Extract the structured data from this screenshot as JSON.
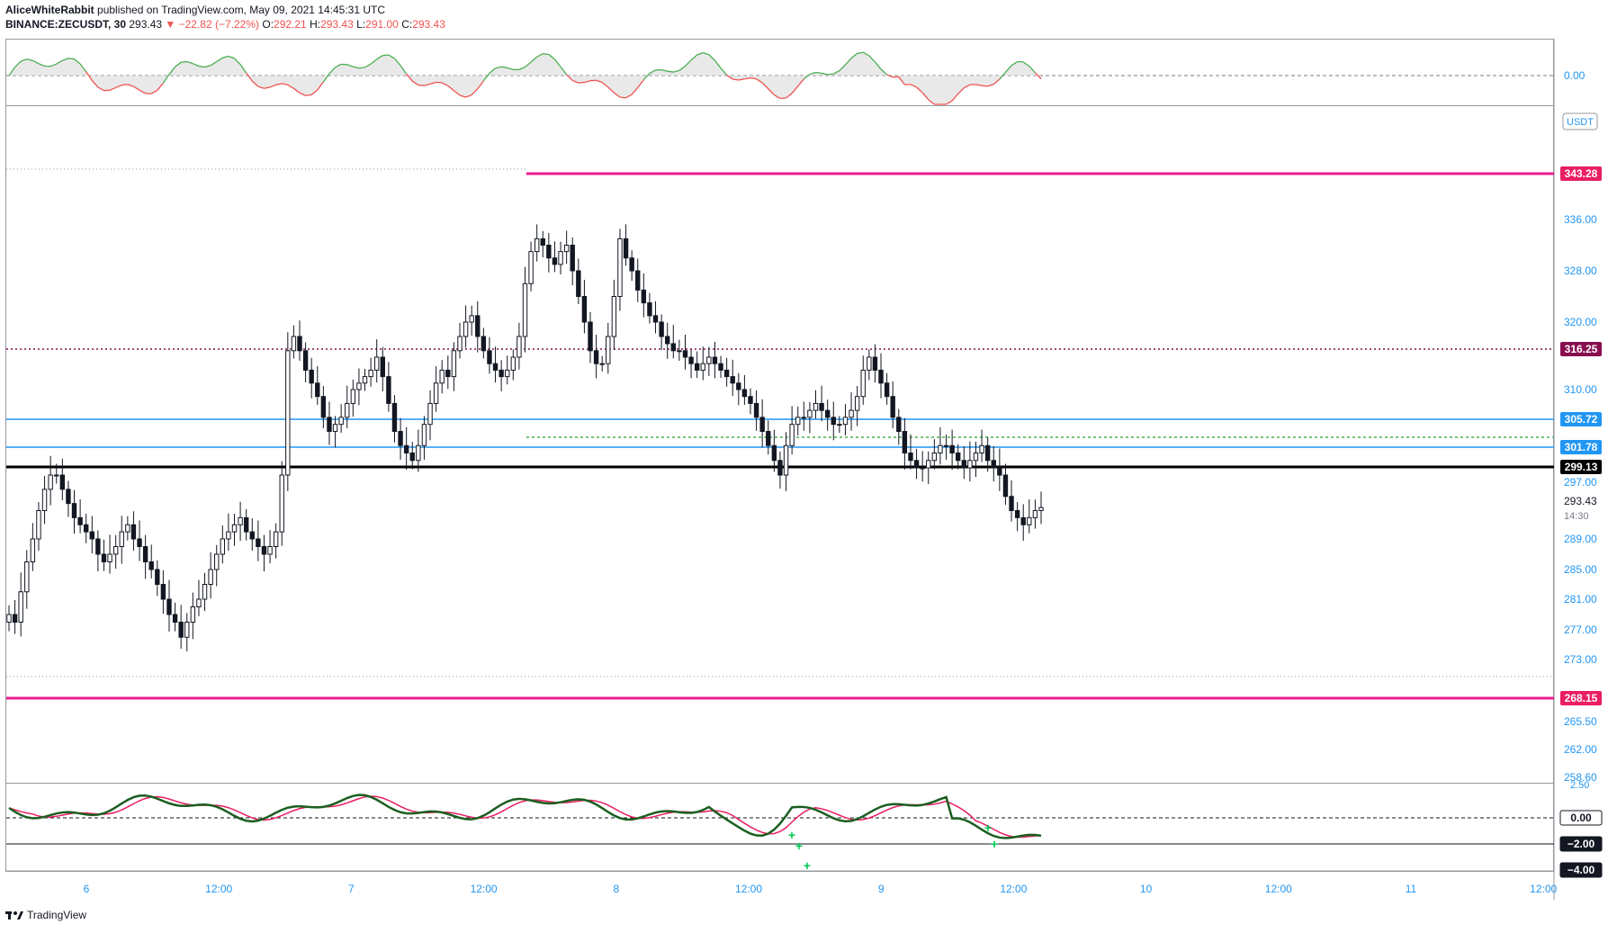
{
  "header": {
    "author": "AliceWhiteRabbit",
    "published": "published on TradingView.com, May 09, 2021 14:45:31 UTC",
    "symbol": "BINANCE:ZECUSDT, 30",
    "last": "293.43",
    "change": "▼ −22.82 (−7.22%)",
    "o_label": "O:",
    "o_val": "292.21",
    "h_label": "H:",
    "h_val": "293.43",
    "l_label": "L:",
    "l_val": "291.00",
    "c_label": "C:",
    "c_val": "293.43"
  },
  "footer": {
    "brand": "TradingView"
  },
  "colors": {
    "up": "#ffffff",
    "down": "#131722",
    "wick": "#131722",
    "resistance": "#e91e8c",
    "blue_level": "#2196f3",
    "black_level": "#000000",
    "osc_green": "#4caf50",
    "osc_red": "#ef5350",
    "wt_green": "#1b5e20",
    "wt_red": "#e91e63"
  },
  "chart_data": {
    "type": "candlestick",
    "symbol": "BINANCE:ZECUSDT",
    "interval": "30",
    "y_unit": "USDT",
    "y_ticks": [
      "336.00",
      "328.00",
      "320.00",
      "310.00",
      "297.00",
      "289.00",
      "285.00",
      "281.00",
      "277.00",
      "273.00",
      "265.50",
      "262.00",
      "258.60"
    ],
    "x_ticks": [
      "6",
      "12:00",
      "7",
      "12:00",
      "8",
      "12:00",
      "9",
      "12:00",
      "10",
      "12:00",
      "11",
      "12:00"
    ],
    "price_label": "293.43",
    "time_label": "14:30",
    "levels": [
      {
        "value": 343.28,
        "label": "343.28",
        "color": "resistance",
        "style": "thick"
      },
      {
        "value": 316.25,
        "label": "316.25",
        "color": "#880e4f",
        "style": "dotted"
      },
      {
        "value": 305.72,
        "label": "305.72",
        "color": "blue_level",
        "style": "solid"
      },
      {
        "value": 301.78,
        "label": "301.78",
        "color": "blue_level",
        "style": "solid"
      },
      {
        "value": 299.13,
        "label": "299.13",
        "color": "black_level",
        "style": "thick"
      },
      {
        "value": 268.15,
        "label": "268.15",
        "color": "resistance",
        "style": "thick"
      }
    ],
    "closes": [
      279,
      278,
      282,
      286,
      289,
      293,
      296,
      298,
      298,
      296,
      294,
      292,
      291,
      290,
      289,
      287,
      286,
      287,
      288,
      290,
      291,
      289,
      288,
      286,
      285,
      283,
      281,
      279,
      278,
      276,
      278,
      280,
      281,
      283,
      285,
      287,
      289,
      290,
      291,
      292,
      290,
      289,
      288,
      287,
      288,
      290,
      298,
      316,
      318,
      316,
      313,
      311,
      309,
      306,
      304,
      305,
      306,
      308,
      310,
      311,
      312,
      313,
      315,
      312,
      308,
      304,
      302,
      301,
      300,
      302,
      305,
      308,
      311,
      313,
      312,
      316,
      318,
      320,
      321,
      318,
      316,
      314,
      313,
      312,
      313,
      315,
      318,
      326,
      331,
      333,
      332,
      330,
      329,
      331,
      332,
      328,
      324,
      320,
      316,
      314,
      314,
      318,
      324,
      333,
      330,
      328,
      325,
      323,
      321,
      320,
      318,
      317,
      316,
      316,
      315,
      314,
      313,
      314,
      315,
      314,
      313,
      312,
      311,
      310,
      309,
      308,
      306,
      304,
      302,
      300,
      298,
      302,
      305,
      306,
      306,
      307,
      308,
      307,
      306,
      305,
      305,
      306,
      307,
      309,
      313,
      315,
      313,
      311,
      309,
      306,
      304,
      301,
      300,
      299,
      299,
      300,
      301,
      302,
      302,
      301,
      300,
      299,
      300,
      301,
      302,
      300,
      299,
      298,
      295,
      293,
      292,
      291,
      292,
      293,
      293.43
    ],
    "oscillator_top": {
      "zero_label": "0.00"
    },
    "oscillator_bottom": {
      "labels": [
        "0.00",
        "−2.00",
        "−4.00"
      ],
      "top_label": "2.50"
    }
  }
}
